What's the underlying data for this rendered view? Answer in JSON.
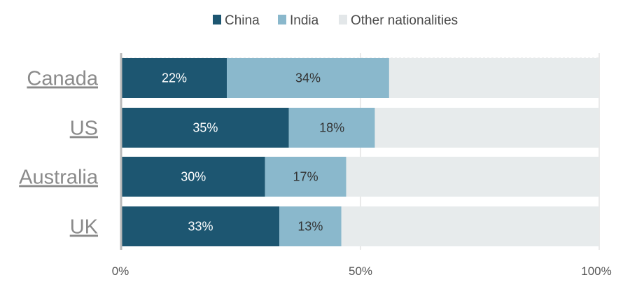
{
  "chart_data": {
    "type": "bar",
    "orientation": "horizontal",
    "stacked": true,
    "categories": [
      "Canada",
      "US",
      "Australia",
      "UK"
    ],
    "series": [
      {
        "name": "China",
        "values": [
          22,
          35,
          30,
          33
        ],
        "labels": [
          "22%",
          "35%",
          "30%",
          "33%"
        ],
        "color": "#1d5671",
        "label_color": "#ffffff"
      },
      {
        "name": "India",
        "values": [
          34,
          18,
          17,
          13
        ],
        "labels": [
          "34%",
          "18%",
          "17%",
          "13%"
        ],
        "color": "#8ab8cc",
        "label_color": "#333333"
      },
      {
        "name": "Other nationalities",
        "values": [
          44,
          47,
          53,
          54
        ],
        "labels": [
          "",
          "",
          "",
          ""
        ],
        "color": "#e7ebec",
        "label_color": "#333333"
      }
    ],
    "xlim": [
      0,
      100
    ],
    "xticks": [
      0,
      50,
      100
    ],
    "xtick_labels": [
      "0%",
      "50%",
      "100%"
    ],
    "grid": true,
    "legend_position": "top-center"
  }
}
